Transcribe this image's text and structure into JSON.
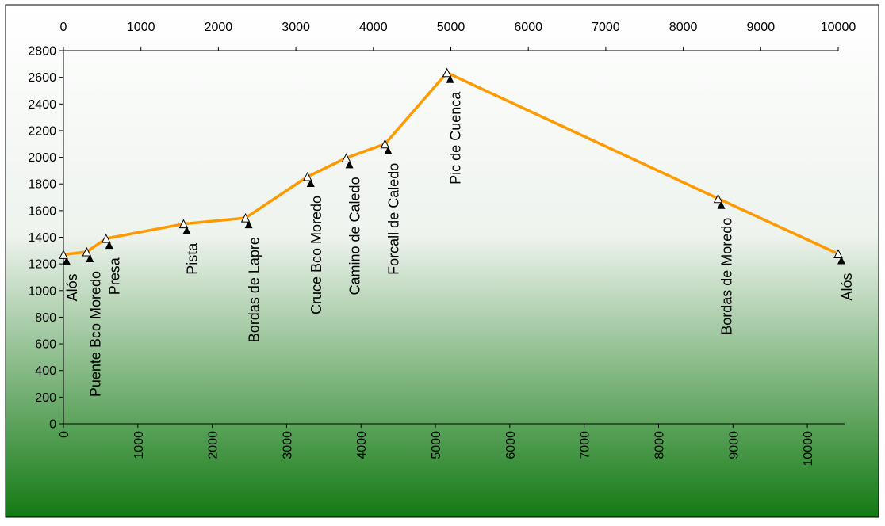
{
  "chart_data": {
    "type": "line",
    "title": "",
    "xlabel": "",
    "ylabel": "",
    "xlim_bottom": [
      0,
      10500
    ],
    "xlim_top": [
      0,
      10000
    ],
    "ylim": [
      0,
      2800
    ],
    "x_ticks_top": [
      0,
      1000,
      2000,
      3000,
      4000,
      5000,
      6000,
      7000,
      8000,
      9000,
      10000
    ],
    "x_ticks_bottom": [
      0,
      1000,
      2000,
      3000,
      4000,
      5000,
      6000,
      7000,
      8000,
      9000,
      10000
    ],
    "y_ticks": [
      0,
      200,
      400,
      600,
      800,
      1000,
      1200,
      1400,
      1600,
      1800,
      2000,
      2200,
      2400,
      2600,
      2800
    ],
    "grid": false,
    "line_color": "#FF9900",
    "background_gradient": [
      "#ffffff",
      "#137a13"
    ],
    "series": [
      {
        "values": [
          {
            "x": 0,
            "y": 1270,
            "label": "Alós"
          },
          {
            "x": 300,
            "y": 1290,
            "label": "Puente Bco Moredo"
          },
          {
            "x": 550,
            "y": 1390,
            "label": "Presa"
          },
          {
            "x": 1550,
            "y": 1500,
            "label": "Pista"
          },
          {
            "x": 2350,
            "y": 1545,
            "label": "Bordas de Lapre"
          },
          {
            "x": 3150,
            "y": 1855,
            "label": "Cruce Bco Moredo"
          },
          {
            "x": 3650,
            "y": 1995,
            "label": "Camino de Caledo"
          },
          {
            "x": 4150,
            "y": 2100,
            "label": "Forcall de Caledo"
          },
          {
            "x": 4950,
            "y": 2635,
            "label": "Pic de Cuenca"
          },
          {
            "x": 8450,
            "y": 1690,
            "label": "Bordas de Moredo"
          },
          {
            "x": 10000,
            "y": 1275,
            "label": "Alós"
          }
        ]
      }
    ]
  }
}
